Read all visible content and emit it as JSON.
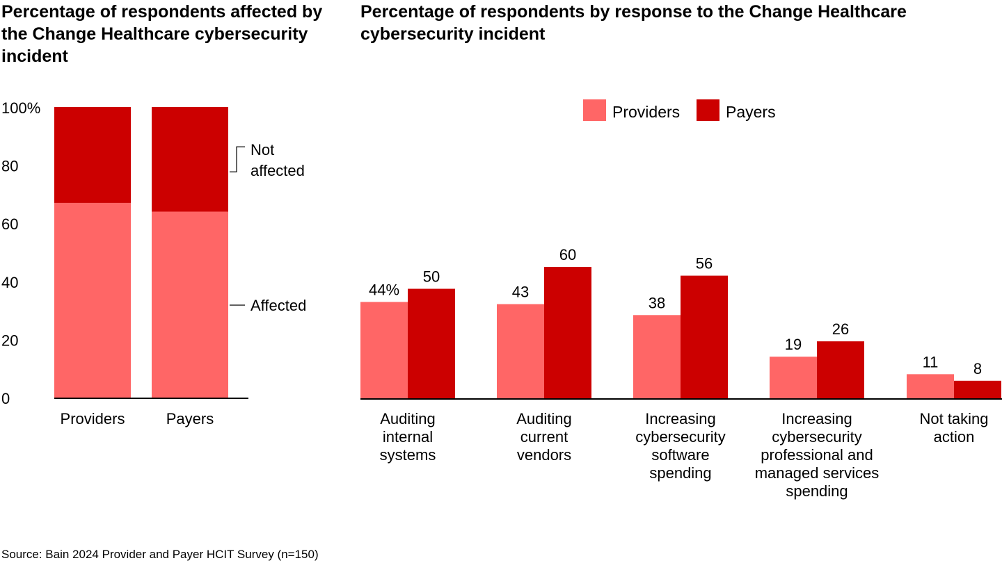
{
  "colors": {
    "providers": "#ff6666",
    "payers": "#cc0000",
    "axis": "#000000"
  },
  "chart_data": [
    {
      "type": "bar",
      "stacked": true,
      "title": "Percentage of respondents affected by the Change Healthcare cybersecurity incident",
      "categories": [
        "Providers",
        "Payers"
      ],
      "series": [
        {
          "name": "Affected",
          "values": [
            67,
            64
          ]
        },
        {
          "name": "Not affected",
          "values": [
            33,
            36
          ]
        }
      ],
      "yticks": [
        "0",
        "20",
        "40",
        "60",
        "80",
        "100%"
      ],
      "ylim": [
        0,
        100
      ],
      "legend_labels": [
        "Not",
        "affected",
        "Affected"
      ]
    },
    {
      "type": "bar",
      "title": "Percentage of respondents by response to the Change Healthcare cybersecurity incident",
      "legend_position": "top",
      "categories": [
        [
          "Auditing",
          "internal",
          "systems"
        ],
        [
          "Auditing",
          "current",
          "vendors"
        ],
        [
          "Increasing",
          "cybersecurity",
          "software",
          "spending"
        ],
        [
          "Increasing",
          "cybersecurity",
          "professional and",
          "managed services",
          "spending"
        ],
        [
          "Not taking",
          "action"
        ]
      ],
      "series": [
        {
          "name": "Providers",
          "values": [
            44,
            43,
            38,
            19,
            11
          ],
          "labels": [
            "44%",
            "43",
            "38",
            "19",
            "11"
          ]
        },
        {
          "name": "Payers",
          "values": [
            50,
            60,
            56,
            26,
            8
          ],
          "labels": [
            "50",
            "60",
            "56",
            "26",
            "8"
          ]
        }
      ],
      "ylim": [
        0,
        100
      ]
    }
  ],
  "source": "Source: Bain 2024 Provider and Payer HCIT Survey (n=150)"
}
